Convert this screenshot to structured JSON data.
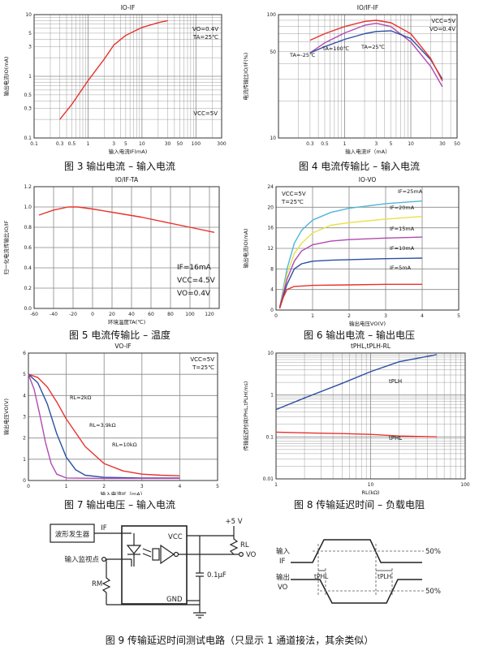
{
  "captions": {
    "fig3": "图 3 输出电流 – 输入电流",
    "fig4": "图 4 电流传输比 – 输入电流",
    "fig5": "图 5 电流传输比 – 温度",
    "fig6": "图 6 输出电流 – 输出电压",
    "fig7": "图 7 输出电压 – 输入电流",
    "fig8": "图 8 传输延迟时间 – 负载电阻",
    "fig9": "图 9 传输延迟时间测试电路（只显示 1 通道接法，其余类似）"
  },
  "colors": {
    "red": "#e8322d",
    "blue": "#2b4fa3",
    "purple": "#b04ab0",
    "cyan": "#4fb6d8",
    "yellow": "#e8e04a",
    "grid": "#888888"
  },
  "chart_data": [
    {
      "id": "fig3",
      "type": "line",
      "title": "IO-IF",
      "xlabel": "输入电流IF(mA)",
      "ylabel": "输出电流IO(mA)",
      "xscale": "log",
      "yscale": "log",
      "xlim": [
        0.1,
        300
      ],
      "ylim": [
        0.1,
        10
      ],
      "xticks": [
        0.1,
        0.3,
        0.5,
        1,
        3,
        5,
        10,
        30,
        50,
        100,
        300
      ],
      "xtick_labels": [
        "0.1",
        "0.3",
        "0.5",
        "1",
        "3",
        "5",
        "10",
        "30",
        "50",
        "100",
        "300"
      ],
      "yticks": [
        0.1,
        0.3,
        0.5,
        1,
        3,
        5,
        10
      ],
      "ytick_labels": [
        "0.1",
        "0.3",
        "0.5",
        "1",
        "3",
        "5",
        "10"
      ],
      "annotations": [
        "VCC=5V",
        "VO=0.4V",
        "TA=25℃"
      ],
      "series": [
        {
          "color": "red",
          "x": [
            0.3,
            0.5,
            1,
            2,
            3,
            5,
            10,
            20,
            30
          ],
          "y": [
            0.2,
            0.35,
            0.85,
            1.9,
            3.2,
            4.6,
            6.2,
            7.4,
            8.0
          ]
        }
      ]
    },
    {
      "id": "fig4",
      "type": "line",
      "title": "IO/IF-IF",
      "xlabel": "输入电流IF（mA）",
      "ylabel": "电流传输比IO/IF(%)",
      "xscale": "log",
      "yscale": "log",
      "xlim": [
        0.1,
        50
      ],
      "ylim": [
        10,
        100
      ],
      "xticks": [
        0.3,
        0.5,
        1,
        3,
        5,
        10,
        30,
        50
      ],
      "xtick_labels": [
        "0.3",
        "0.5",
        "1",
        "3",
        "5",
        "10",
        "30",
        "50"
      ],
      "yticks": [
        10,
        50,
        100
      ],
      "ytick_labels": [
        "10",
        "50",
        "100"
      ],
      "annotations": [
        "VCC=5V",
        "VO=0.4V",
        "TA=-25℃",
        "TA=100℃",
        "TA=25℃"
      ],
      "series": [
        {
          "name": "TA=100℃",
          "color": "purple",
          "x": [
            0.3,
            0.5,
            1,
            2,
            3,
            5,
            10,
            20,
            30
          ],
          "y": [
            49,
            59,
            71,
            82,
            85,
            80,
            60,
            38,
            26
          ]
        },
        {
          "name": "TA=-25℃",
          "color": "blue",
          "x": [
            0.3,
            0.5,
            1,
            2,
            3,
            5,
            10,
            20,
            30
          ],
          "y": [
            49,
            55,
            63,
            70,
            73,
            74,
            64,
            43,
            30
          ]
        },
        {
          "name": "TA=25℃",
          "color": "red",
          "x": [
            0.3,
            0.5,
            1,
            2,
            3,
            5,
            10,
            20,
            30
          ],
          "y": [
            62,
            70,
            80,
            88,
            90,
            86,
            70,
            44,
            29
          ]
        }
      ]
    },
    {
      "id": "fig5",
      "type": "line",
      "title": "IO/IF-TA",
      "xlabel": "环境温度TA(℃)",
      "ylabel": "归一化电流传输比IO/IF",
      "xscale": "linear",
      "yscale": "linear",
      "xlim": [
        -60,
        130
      ],
      "ylim": [
        0,
        1.2
      ],
      "xticks": [
        -60,
        -40,
        -20,
        0,
        20,
        40,
        60,
        80,
        100,
        120
      ],
      "xtick_labels": [
        "-60",
        "-40",
        "-20",
        "0",
        "20",
        "40",
        "60",
        "80",
        "100",
        "120"
      ],
      "yticks": [
        0,
        0.2,
        0.4,
        0.6,
        0.8,
        1.0,
        1.2
      ],
      "ytick_labels": [
        "0.0",
        "0.2",
        "0.4",
        "0.6",
        "0.8",
        "1.0",
        "1.2"
      ],
      "annotations": [
        "IF=16mA",
        "VCC=4.5V",
        "VO=0.4V"
      ],
      "series": [
        {
          "color": "red",
          "x": [
            -55,
            -40,
            -25,
            -15,
            0,
            25,
            50,
            75,
            100,
            125
          ],
          "y": [
            0.92,
            0.97,
            1.0,
            1.0,
            0.98,
            0.94,
            0.9,
            0.85,
            0.8,
            0.75
          ]
        }
      ]
    },
    {
      "id": "fig6",
      "type": "line",
      "title": "IO-VO",
      "xlabel": "输出电压VO(V)",
      "ylabel": "输出电流IO(mA)",
      "xscale": "linear",
      "yscale": "linear",
      "xlim": [
        0,
        5
      ],
      "ylim": [
        0,
        24
      ],
      "xticks": [
        0,
        1,
        2,
        3,
        4,
        5
      ],
      "xtick_labels": [
        "0",
        "1",
        "2",
        "3",
        "4",
        "5"
      ],
      "yticks": [
        0,
        4,
        8,
        12,
        16,
        20,
        24
      ],
      "ytick_labels": [
        "0",
        "4",
        "8",
        "12",
        "16",
        "20",
        "24"
      ],
      "annotations": [
        "VCC=5V",
        "T=25℃",
        "IF=25mA",
        "IF=20mA",
        "IF=15mA",
        "IF=10mA",
        "IF=5mA"
      ],
      "series": [
        {
          "name": "IF=25mA",
          "color": "cyan",
          "x": [
            0.1,
            0.3,
            0.5,
            0.7,
            1.0,
            1.5,
            2,
            3,
            4
          ],
          "y": [
            0.5,
            8,
            13,
            15.5,
            17.5,
            19,
            19.8,
            20.7,
            21.2
          ]
        },
        {
          "name": "IF=20mA",
          "color": "yellow",
          "x": [
            0.1,
            0.3,
            0.5,
            0.7,
            1.0,
            1.5,
            2,
            3,
            4
          ],
          "y": [
            0.5,
            7,
            11,
            13,
            15,
            16.5,
            17,
            17.7,
            18.2
          ]
        },
        {
          "name": "IF=15mA",
          "color": "purple",
          "x": [
            0.1,
            0.3,
            0.5,
            0.7,
            1.0,
            1.5,
            2,
            3,
            4
          ],
          "y": [
            0.5,
            6,
            9.5,
            11.5,
            12.7,
            13.4,
            13.7,
            14,
            14.2
          ]
        },
        {
          "name": "IF=10mA",
          "color": "blue",
          "x": [
            0.1,
            0.3,
            0.5,
            0.7,
            1.0,
            1.5,
            2,
            3,
            4
          ],
          "y": [
            0.5,
            5,
            8,
            9,
            9.5,
            9.7,
            9.8,
            10,
            10.1
          ]
        },
        {
          "name": "IF=5mA",
          "color": "red",
          "x": [
            0.1,
            0.2,
            0.3,
            0.5,
            1.0,
            2,
            3,
            4
          ],
          "y": [
            0.3,
            2.5,
            4,
            4.6,
            4.8,
            4.9,
            5,
            5
          ]
        }
      ]
    },
    {
      "id": "fig7",
      "type": "line",
      "title": "VO-IF",
      "xlabel": "输入电流IF（mA）",
      "ylabel": "输出电压VO(V)",
      "xscale": "linear",
      "yscale": "linear",
      "xlim": [
        0,
        5
      ],
      "ylim": [
        0,
        6
      ],
      "xticks": [
        0,
        1,
        2,
        3,
        4,
        5
      ],
      "xtick_labels": [
        "0",
        "1",
        "2",
        "3",
        "4",
        "5"
      ],
      "yticks": [
        0,
        1,
        2,
        3,
        4,
        5,
        6
      ],
      "ytick_labels": [
        "0",
        "1",
        "2",
        "3",
        "4",
        "5",
        "6"
      ],
      "annotations": [
        "VCC=5V",
        "T=25℃",
        "RL=2kΩ",
        "RL=3.9kΩ",
        "RL=10kΩ"
      ],
      "series": [
        {
          "name": "RL=2kΩ",
          "color": "red",
          "x": [
            0,
            0.25,
            0.5,
            0.75,
            1,
            1.5,
            2,
            2.5,
            3,
            3.5,
            4
          ],
          "y": [
            5,
            4.85,
            4.4,
            3.7,
            2.9,
            1.6,
            0.8,
            0.45,
            0.3,
            0.25,
            0.22
          ]
        },
        {
          "name": "RL=3.9kΩ",
          "color": "blue",
          "x": [
            0,
            0.25,
            0.5,
            0.75,
            1,
            1.25,
            1.5,
            2,
            3,
            4
          ],
          "y": [
            5,
            4.6,
            3.6,
            2.2,
            1.1,
            0.5,
            0.25,
            0.15,
            0.12,
            0.12
          ]
        },
        {
          "name": "RL=10kΩ",
          "color": "purple",
          "x": [
            0,
            0.15,
            0.3,
            0.45,
            0.6,
            0.75,
            1,
            2,
            4
          ],
          "y": [
            5,
            4.3,
            3.1,
            1.8,
            0.8,
            0.3,
            0.12,
            0.1,
            0.1
          ]
        }
      ]
    },
    {
      "id": "fig8",
      "type": "line",
      "title": "tPHL,tPLH-RL",
      "xlabel": "RL(kΩ)",
      "ylabel": "传输延迟时间tPHL,tPLH(ms)",
      "xscale": "log",
      "yscale": "log",
      "xlim": [
        1,
        100
      ],
      "ylim": [
        0.01,
        10
      ],
      "xticks": [
        1,
        10,
        100
      ],
      "xtick_labels": [
        "1",
        "10",
        "100"
      ],
      "yticks": [
        0.01,
        0.1,
        1,
        10
      ],
      "ytick_labels": [
        "0.01",
        "0.1",
        "1",
        "10"
      ],
      "annotations": [
        "tPLH",
        "tPHL"
      ],
      "series": [
        {
          "name": "tPLH",
          "color": "blue",
          "x": [
            1,
            2,
            5,
            10,
            20,
            50
          ],
          "y": [
            0.45,
            0.85,
            1.9,
            3.6,
            6.2,
            9.2
          ]
        },
        {
          "name": "tPHL",
          "color": "red",
          "x": [
            1,
            2,
            5,
            10,
            20,
            50
          ],
          "y": [
            0.13,
            0.125,
            0.12,
            0.115,
            0.105,
            0.1
          ]
        }
      ]
    }
  ],
  "circuit": {
    "generator": "波形发生器",
    "input_monitor": "输入监视点",
    "if_label": "IF",
    "vcc": "VCC",
    "gnd": "GND",
    "supply": "+5 V",
    "rl": "RL",
    "rm": "RM",
    "cap": "0.1µF",
    "vo": "VO"
  },
  "timing": {
    "input_label": "输入",
    "if_label": "IF",
    "output_label": "输出",
    "vo_label": "VO",
    "pct_top": "50%",
    "pct_bottom": "50%",
    "tphl": "tPHL",
    "tplh": "tPLH"
  }
}
